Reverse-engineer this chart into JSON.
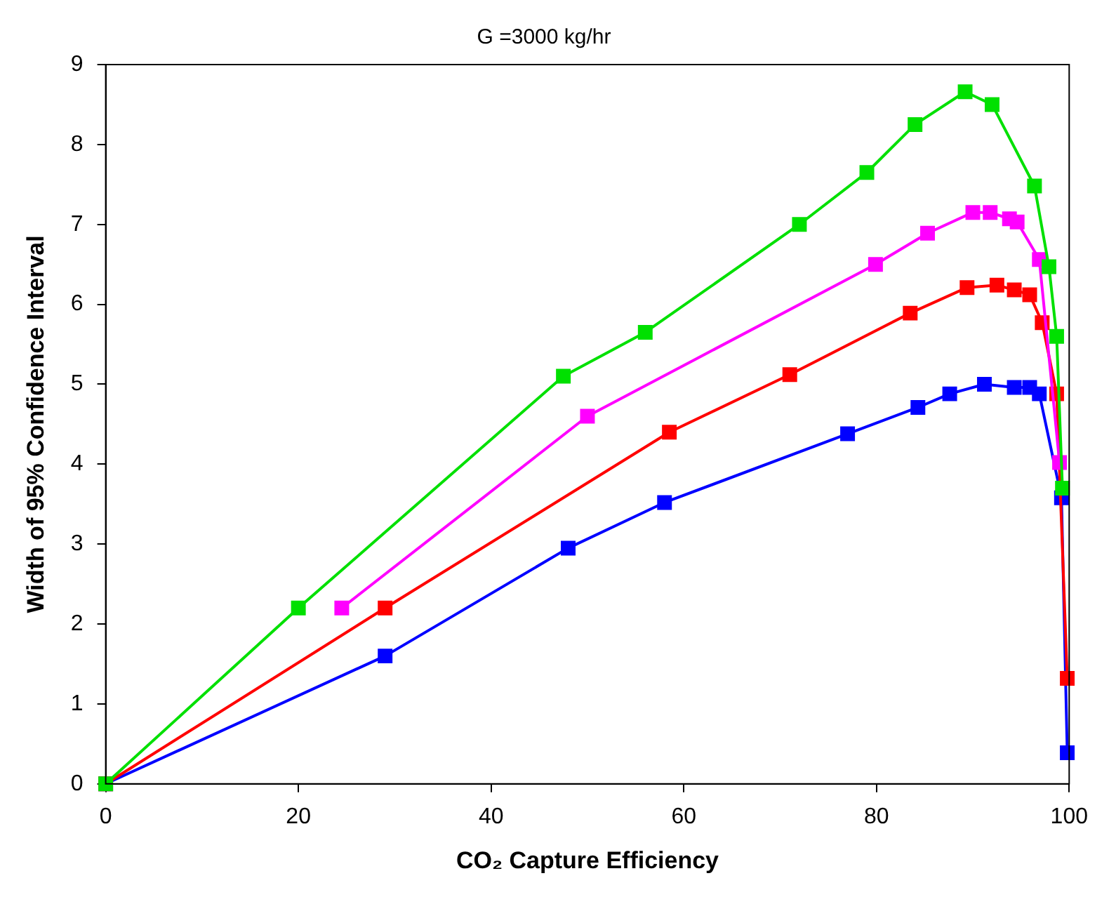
{
  "chart_data": {
    "type": "line",
    "title": "G =3000 kg/hr",
    "xlabel": "CO₂ Capture Efficiency",
    "ylabel": "Width of 95% Confidence Interval",
    "xlim": [
      0,
      100
    ],
    "xticks": [
      0,
      20,
      40,
      60,
      80,
      100
    ],
    "ylim": [
      0,
      9
    ],
    "yticks": [
      0,
      1,
      2,
      3,
      4,
      5,
      6,
      7,
      8,
      9
    ],
    "grid": false,
    "legend": false,
    "marker": "square",
    "line_style": "solid",
    "series": [
      {
        "color": "#00e000",
        "x": [
          0,
          20,
          47.5,
          56,
          72,
          79,
          84,
          89.2,
          92,
          96.4,
          97.9,
          98.7,
          99.3
        ],
        "values": [
          0,
          2.2,
          5.1,
          5.65,
          7.0,
          7.65,
          8.25,
          8.66,
          8.5,
          7.48,
          6.47,
          5.6,
          3.7
        ]
      },
      {
        "color": "#ff00ff",
        "x": [
          24.5,
          50,
          79.9,
          85.3,
          90,
          91.8,
          93.8,
          94.6,
          96.9,
          99
        ],
        "values": [
          2.2,
          4.6,
          6.5,
          6.89,
          7.15,
          7.15,
          7.07,
          7.03,
          6.56,
          4.02
        ]
      },
      {
        "color": "#ff0000",
        "x": [
          0,
          29,
          58.5,
          71,
          83.5,
          89.4,
          92.5,
          94.3,
          95.9,
          97.2,
          98.7,
          99.8
        ],
        "values": [
          0,
          2.2,
          4.4,
          5.12,
          5.89,
          6.21,
          6.24,
          6.18,
          6.12,
          5.77,
          4.88,
          1.32
        ]
      },
      {
        "color": "#0000ff",
        "x": [
          0,
          29,
          48,
          58,
          77,
          84.3,
          87.6,
          91.2,
          94.3,
          95.9,
          96.9,
          99.2,
          99.8
        ],
        "values": [
          0,
          1.6,
          2.95,
          3.52,
          4.38,
          4.71,
          4.88,
          5.0,
          4.96,
          4.96,
          4.88,
          3.58,
          0.39
        ]
      }
    ]
  }
}
